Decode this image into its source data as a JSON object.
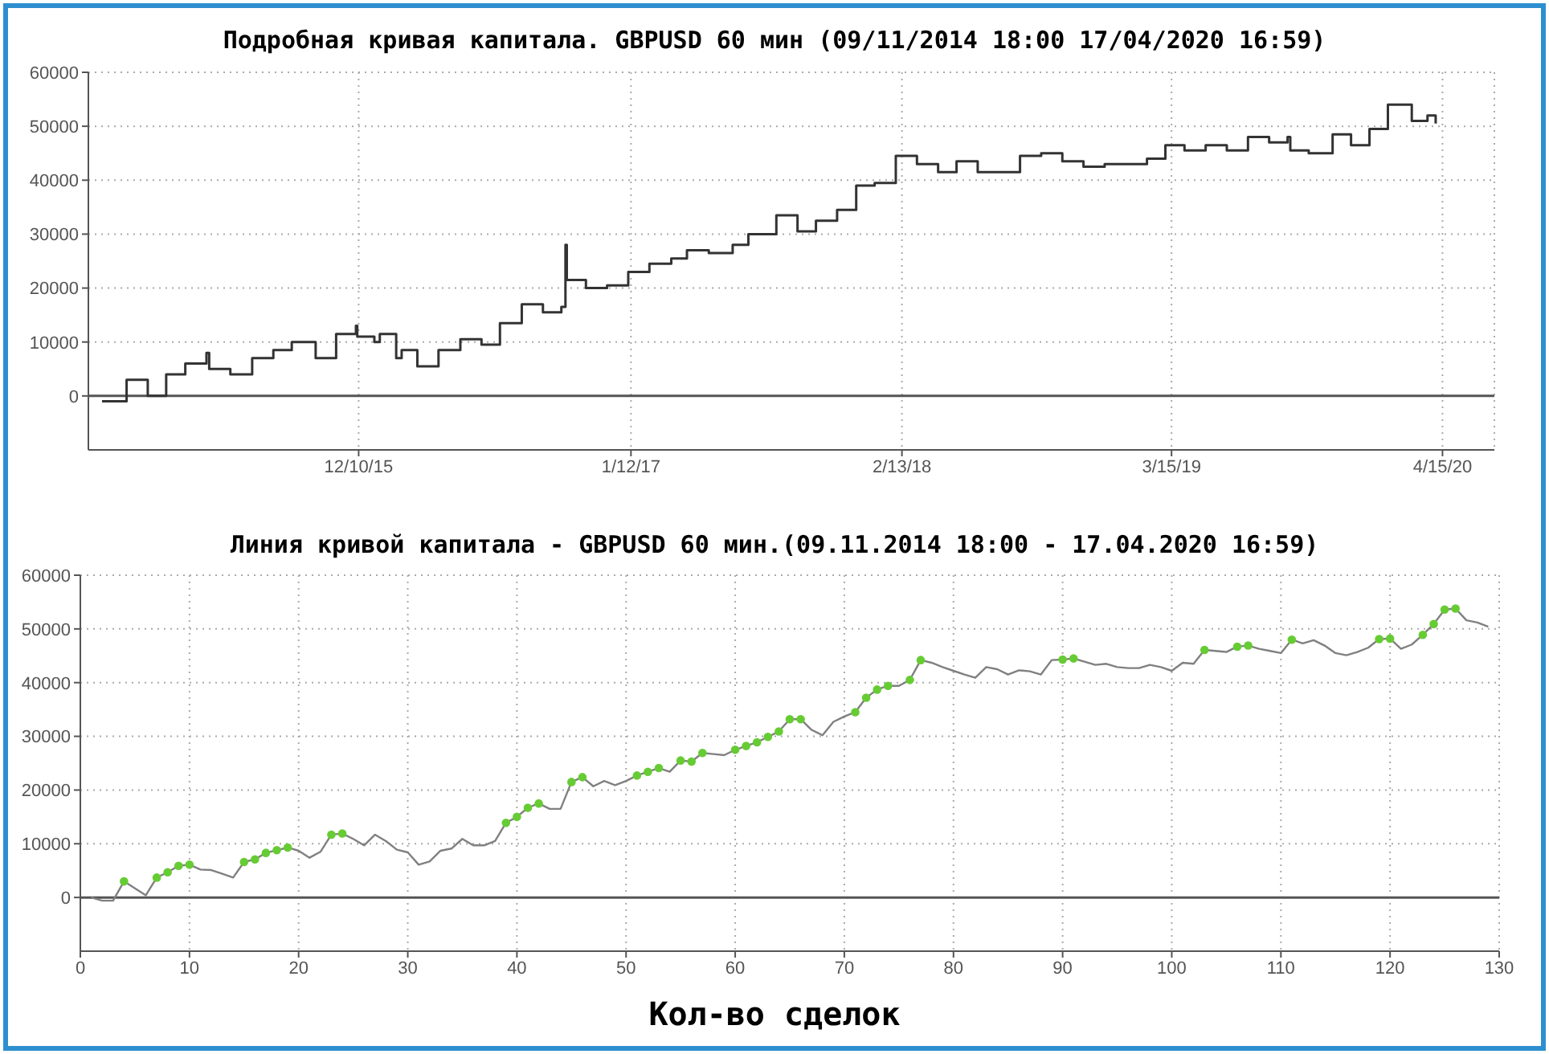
{
  "chart_data": [
    {
      "type": "step",
      "title": "Подробная кривая капитала.  GBPUSD 60 мин (09/11/2014 18:00 17/04/2020 16:59)",
      "xlim": [
        "2014-11-09",
        "2020-06-30"
      ],
      "xticks": [
        {
          "value": "2015-12-10",
          "label": "12/10/15"
        },
        {
          "value": "2017-01-12",
          "label": "1/12/17"
        },
        {
          "value": "2018-02-13",
          "label": "2/13/18"
        },
        {
          "value": "2019-03-15",
          "label": "3/15/19"
        },
        {
          "value": "2020-04-15",
          "label": "4/15/20"
        }
      ],
      "ylim": [
        -10000,
        60000
      ],
      "yticks": [
        0,
        10000,
        20000,
        30000,
        40000,
        50000,
        60000
      ],
      "grid": true,
      "ref_lines": [
        {
          "axis": "y",
          "value": 0,
          "color": "#555555"
        }
      ],
      "series": [
        {
          "color": "#333333",
          "x": [
            "2014-11-29",
            "2015-01-04",
            "2015-02-04",
            "2015-03-03",
            "2015-03-31",
            "2015-05-01",
            "2015-05-05",
            "2015-06-05",
            "2015-07-07",
            "2015-08-07",
            "2015-09-03",
            "2015-10-08",
            "2015-11-07",
            "2015-12-06",
            "2015-12-08",
            "2016-01-02",
            "2016-01-10",
            "2016-02-03",
            "2016-02-11",
            "2016-03-05",
            "2016-04-05",
            "2016-05-07",
            "2016-06-07",
            "2016-07-04",
            "2016-08-05",
            "2016-09-05",
            "2016-10-02",
            "2016-10-08",
            "2016-10-10",
            "2016-11-07",
            "2016-12-08",
            "2017-01-08",
            "2017-02-08",
            "2017-03-12",
            "2017-04-04",
            "2017-05-06",
            "2017-06-10",
            "2017-07-03",
            "2017-08-13",
            "2017-09-13",
            "2017-10-10",
            "2017-11-10",
            "2017-12-08",
            "2018-01-04",
            "2018-02-04",
            "2018-03-07",
            "2018-04-07",
            "2018-05-04",
            "2018-06-04",
            "2018-07-05",
            "2018-08-05",
            "2018-09-05",
            "2018-10-06",
            "2018-11-06",
            "2018-12-07",
            "2019-01-07",
            "2019-02-07",
            "2019-03-06",
            "2019-04-03",
            "2019-05-04",
            "2019-06-04",
            "2019-07-05",
            "2019-08-05",
            "2019-09-01",
            "2019-09-05",
            "2019-10-02",
            "2019-11-06",
            "2019-12-03",
            "2019-12-30",
            "2020-01-26",
            "2020-03-01",
            "2020-03-24",
            "2020-04-05"
          ],
          "values": [
            -1000,
            3000,
            0,
            4000,
            6000,
            8000,
            5000,
            4000,
            7000,
            8500,
            10000,
            7000,
            11500,
            13000,
            11000,
            10000,
            11500,
            7000,
            8500,
            5500,
            8500,
            10500,
            9500,
            13500,
            17000,
            15500,
            16500,
            28000,
            21500,
            20000,
            20500,
            23000,
            24500,
            25500,
            27000,
            26500,
            28000,
            30000,
            33500,
            30500,
            32500,
            34500,
            39000,
            39500,
            44500,
            43000,
            41500,
            43500,
            41500,
            41500,
            44500,
            45000,
            43500,
            42500,
            43000,
            43000,
            44000,
            46500,
            45500,
            46500,
            45500,
            48000,
            47000,
            48000,
            45500,
            45000,
            48500,
            46500,
            49500,
            54000,
            51000,
            52000,
            50500
          ]
        }
      ]
    },
    {
      "type": "line",
      "title": "Линия кривой капитала - GBPUSD 60 мин.(09.11.2014 18:00 - 17.04.2020 16:59)",
      "xlabel": "Кол-во сделок",
      "xlim": [
        0,
        130
      ],
      "xticks": [
        0,
        10,
        20,
        30,
        40,
        50,
        60,
        70,
        80,
        90,
        100,
        110,
        120,
        130
      ],
      "ylim": [
        -10000,
        60000
      ],
      "yticks": [
        0,
        10000,
        20000,
        30000,
        40000,
        50000,
        60000
      ],
      "grid": true,
      "ref_lines": [
        {
          "axis": "y",
          "value": 0,
          "color": "#555555"
        }
      ],
      "series": [
        {
          "color": "#808080",
          "marker": "none",
          "x": [
            1,
            2,
            3,
            4,
            5,
            6,
            7,
            8,
            9,
            10,
            11,
            12,
            13,
            14,
            15,
            16,
            17,
            18,
            19,
            20,
            21,
            22,
            23,
            24,
            25,
            26,
            27,
            28,
            29,
            30,
            31,
            32,
            33,
            34,
            35,
            36,
            37,
            38,
            39,
            40,
            41,
            42,
            43,
            44,
            45,
            46,
            47,
            48,
            49,
            50,
            51,
            52,
            53,
            54,
            55,
            56,
            57,
            58,
            59,
            60,
            61,
            62,
            63,
            64,
            65,
            66,
            67,
            68,
            69,
            70,
            71,
            72,
            73,
            74,
            75,
            76,
            77,
            78,
            79,
            80,
            81,
            82,
            83,
            84,
            85,
            86,
            87,
            88,
            89,
            90,
            91,
            92,
            93,
            94,
            95,
            96,
            97,
            98,
            99,
            100,
            101,
            102,
            103,
            104,
            105,
            106,
            107,
            108,
            109,
            110,
            111,
            112,
            113,
            114,
            115,
            116,
            117,
            118,
            119,
            120,
            121,
            122,
            123,
            124,
            125,
            126,
            127,
            128,
            129
          ],
          "values": [
            0,
            -600,
            -600,
            3000,
            1700,
            400,
            3700,
            4700,
            5900,
            6100,
            5200,
            5100,
            4400,
            3700,
            6600,
            7100,
            8300,
            8800,
            9300,
            8700,
            7400,
            8500,
            11700,
            11900,
            10900,
            9700,
            11700,
            10500,
            8900,
            8400,
            6100,
            6700,
            8700,
            9100,
            10900,
            9700,
            9700,
            10500,
            13900,
            15000,
            16700,
            17500,
            16500,
            16500,
            21500,
            22400,
            20700,
            21700,
            20900,
            21700,
            22700,
            23400,
            24100,
            23400,
            25500,
            25300,
            26900,
            26700,
            26500,
            27500,
            28200,
            28900,
            29900,
            30900,
            33200,
            33200,
            31200,
            30200,
            32700,
            33700,
            34500,
            37200,
            38700,
            39400,
            39400,
            40500,
            44200,
            43700,
            42900,
            42200,
            41500,
            40900,
            42900,
            42500,
            41500,
            42300,
            42100,
            41500,
            44200,
            44300,
            44500,
            43900,
            43300,
            43500,
            42900,
            42700,
            42700,
            43300,
            42900,
            42200,
            43700,
            43500,
            46100,
            45900,
            45700,
            46700,
            46900,
            46300,
            45900,
            45500,
            48000,
            47300,
            47900,
            46900,
            45500,
            45100,
            45700,
            46500,
            48100,
            48200,
            46300,
            47100,
            48900,
            50900,
            53600,
            53800,
            51600,
            51200,
            50400
          ]
        },
        {
          "type": "scatter",
          "color": "#66cc33",
          "marker": "circle",
          "x": [
            4,
            7,
            8,
            9,
            10,
            15,
            16,
            17,
            18,
            19,
            23,
            24,
            39,
            40,
            41,
            42,
            45,
            46,
            51,
            52,
            53,
            55,
            56,
            57,
            60,
            61,
            62,
            63,
            64,
            65,
            66,
            71,
            72,
            73,
            74,
            76,
            77,
            90,
            91,
            103,
            106,
            107,
            111,
            119,
            120,
            123,
            124,
            125,
            126
          ],
          "values": [
            3000,
            3700,
            4700,
            5900,
            6100,
            6600,
            7100,
            8300,
            8800,
            9300,
            11700,
            11900,
            13900,
            15000,
            16700,
            17500,
            21500,
            22400,
            22700,
            23400,
            24100,
            25500,
            25300,
            26900,
            27500,
            28200,
            28900,
            29900,
            30900,
            33200,
            33200,
            34500,
            37200,
            38700,
            39400,
            40500,
            44200,
            44300,
            44500,
            46100,
            46700,
            46900,
            48000,
            48100,
            48200,
            48900,
            50900,
            53600,
            53800
          ]
        }
      ]
    }
  ]
}
